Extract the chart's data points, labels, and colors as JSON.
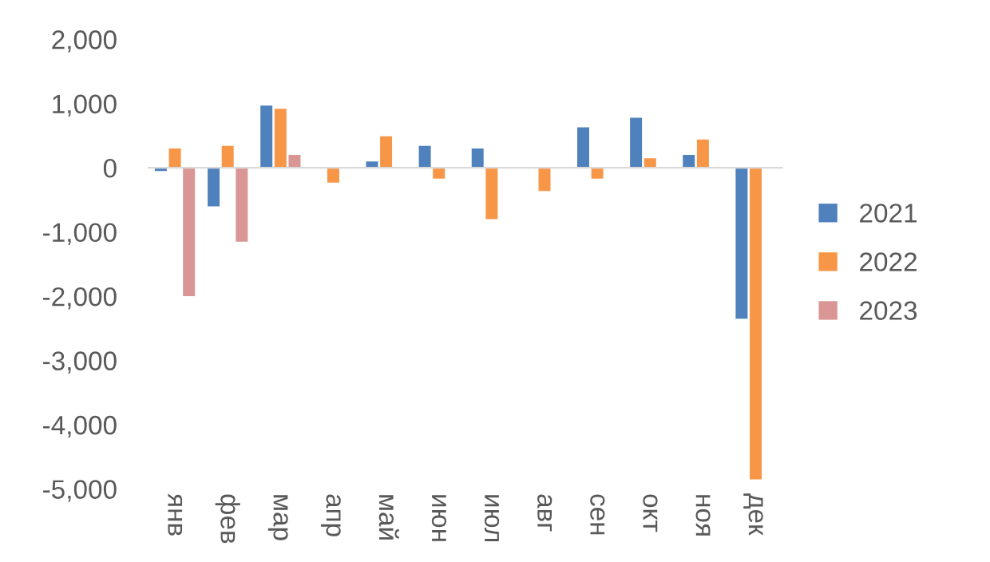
{
  "chart_data": {
    "type": "bar",
    "categories": [
      "янв",
      "фев",
      "мар",
      "апр",
      "май",
      "июн",
      "июл",
      "авг",
      "сен",
      "окт",
      "ноя",
      "дек"
    ],
    "series": [
      {
        "name": "2021",
        "color": "#4f81bd",
        "values": [
          -50,
          -600,
          970,
          0,
          100,
          340,
          300,
          0,
          630,
          780,
          200,
          -2350
        ]
      },
      {
        "name": "2022",
        "color": "#f79646",
        "values": [
          300,
          340,
          920,
          -230,
          490,
          -170,
          -800,
          -360,
          -170,
          150,
          440,
          -4850
        ]
      },
      {
        "name": "2023",
        "color": "#d99694",
        "values": [
          -2000,
          -1150,
          200,
          null,
          null,
          null,
          null,
          null,
          null,
          null,
          null,
          null
        ]
      }
    ],
    "ylim": [
      -5000,
      2000
    ],
    "yticks": [
      {
        "value": 2000,
        "label": "2,000"
      },
      {
        "value": 1000,
        "label": "1,000"
      },
      0,
      {
        "value": -1000,
        "label": "-1,000"
      },
      {
        "value": -2000,
        "label": "-2,000"
      },
      {
        "value": -3000,
        "label": "-3,000"
      },
      {
        "value": -4000,
        "label": "-4,000"
      },
      {
        "value": -5000,
        "label": "-5,000"
      }
    ],
    "legend": "right"
  }
}
